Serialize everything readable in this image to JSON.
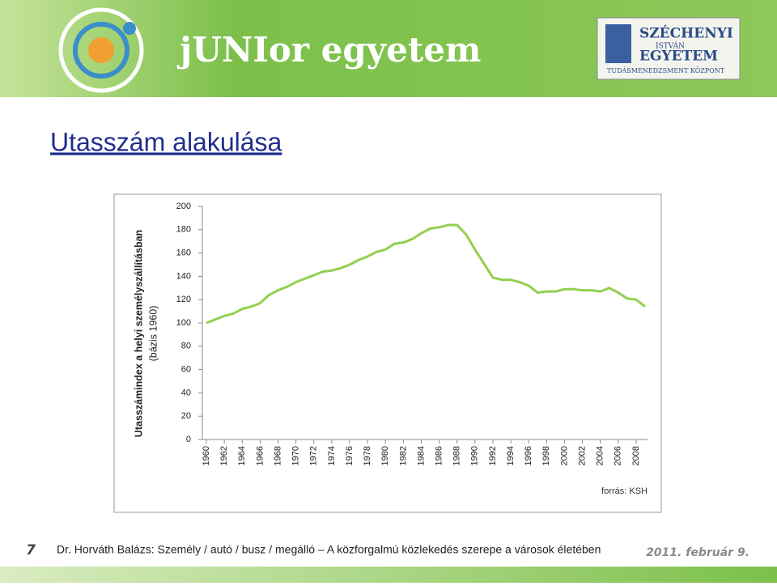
{
  "header": {
    "brand": "jUNIor egyetem",
    "logo_lines": [
      "SZÉCHENYI",
      "ISTVÁN",
      "EGYETEM",
      "TUDÁSMENEDZSMENT KÖZPONT"
    ]
  },
  "title": "Utasszám alakulása",
  "footer": {
    "page": "7",
    "text": "Dr. Horváth Balázs: Személy / autó / busz / megálló – A közforgalmú közlekedés szerepe a városok életében",
    "date": "2011. február 9."
  },
  "chart_data": {
    "type": "line",
    "y_label": "Utasszámindex a helyi személyszállításban",
    "y_sublabel": "(bázis 1960)",
    "source": "forrás: KSH",
    "x": [
      1960,
      1961,
      1962,
      1963,
      1964,
      1965,
      1966,
      1967,
      1968,
      1969,
      1970,
      1971,
      1972,
      1973,
      1974,
      1975,
      1976,
      1977,
      1978,
      1979,
      1980,
      1981,
      1982,
      1983,
      1984,
      1985,
      1986,
      1987,
      1988,
      1989,
      1990,
      1991,
      1992,
      1993,
      1994,
      1995,
      1996,
      1997,
      1998,
      1999,
      2000,
      2001,
      2002,
      2003,
      2004,
      2005,
      2006,
      2007,
      2008,
      2009
    ],
    "values": [
      100,
      103,
      106,
      108,
      112,
      114,
      117,
      124,
      128,
      131,
      135,
      138,
      141,
      144,
      145,
      147,
      150,
      154,
      157,
      161,
      163,
      168,
      169,
      172,
      177,
      181,
      182,
      184,
      184,
      176,
      163,
      151,
      139,
      137,
      137,
      135,
      132,
      126,
      127,
      127,
      129,
      129,
      128,
      128,
      127,
      130,
      126,
      121,
      120,
      114
    ],
    "color": "#92d050",
    "xlim": [
      1960,
      2009
    ],
    "xticks": [
      1960,
      1962,
      1964,
      1966,
      1968,
      1970,
      1972,
      1974,
      1976,
      1978,
      1980,
      1982,
      1984,
      1986,
      1988,
      1990,
      1992,
      1994,
      1996,
      1998,
      2000,
      2002,
      2004,
      2006,
      2008
    ],
    "ylim": [
      0,
      200
    ],
    "yticks": [
      0,
      20,
      40,
      60,
      80,
      100,
      120,
      140,
      160,
      180,
      200
    ],
    "grid": false
  }
}
